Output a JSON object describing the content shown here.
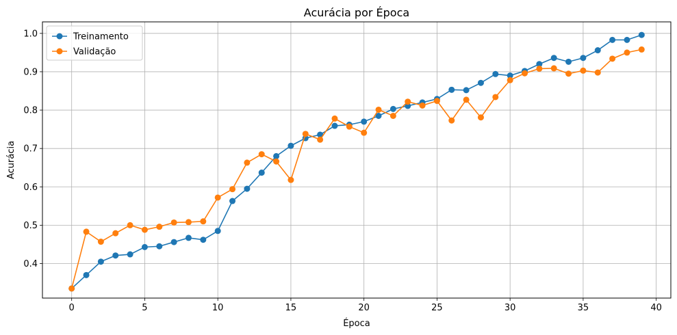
{
  "chart_data": {
    "type": "line",
    "title": "Acurácia por Época",
    "xlabel": "Época",
    "ylabel": "Acurácia",
    "xlim": [
      -2,
      41
    ],
    "ylim": [
      0.31,
      1.03
    ],
    "xticks": [
      0,
      5,
      10,
      15,
      20,
      25,
      30,
      35,
      40
    ],
    "yticks": [
      0.4,
      0.5,
      0.6,
      0.7,
      0.8,
      0.9,
      1.0
    ],
    "xtick_labels": [
      "0",
      "5",
      "10",
      "15",
      "20",
      "25",
      "30",
      "35",
      "40"
    ],
    "ytick_labels": [
      "0.4",
      "0.5",
      "0.6",
      "0.7",
      "0.8",
      "0.9",
      "1.0"
    ],
    "grid": true,
    "legend_position": "top-left",
    "x": [
      0,
      1,
      2,
      3,
      4,
      5,
      6,
      7,
      8,
      9,
      10,
      11,
      12,
      13,
      14,
      15,
      16,
      17,
      18,
      19,
      20,
      21,
      22,
      23,
      24,
      25,
      26,
      27,
      28,
      29,
      30,
      31,
      32,
      33,
      34,
      35,
      36,
      37,
      38,
      39
    ],
    "series": [
      {
        "name": "Treinamento",
        "color": "#1f77b4",
        "values": [
          0.335,
          0.37,
          0.405,
          0.421,
          0.424,
          0.443,
          0.445,
          0.456,
          0.467,
          0.462,
          0.485,
          0.563,
          0.595,
          0.637,
          0.68,
          0.707,
          0.727,
          0.736,
          0.759,
          0.762,
          0.77,
          0.785,
          0.803,
          0.811,
          0.82,
          0.829,
          0.853,
          0.852,
          0.871,
          0.894,
          0.89,
          0.902,
          0.92,
          0.936,
          0.926,
          0.936,
          0.956,
          0.983,
          0.983,
          0.996
        ]
      },
      {
        "name": "Validação",
        "color": "#ff7f0e",
        "values": [
          0.335,
          0.483,
          0.457,
          0.479,
          0.5,
          0.488,
          0.496,
          0.507,
          0.508,
          0.51,
          0.572,
          0.594,
          0.663,
          0.685,
          0.666,
          0.618,
          0.738,
          0.723,
          0.778,
          0.757,
          0.741,
          0.801,
          0.785,
          0.822,
          0.812,
          0.824,
          0.773,
          0.827,
          0.781,
          0.834,
          0.878,
          0.896,
          0.908,
          0.909,
          0.895,
          0.903,
          0.898,
          0.934,
          0.95,
          0.958
        ]
      }
    ]
  }
}
